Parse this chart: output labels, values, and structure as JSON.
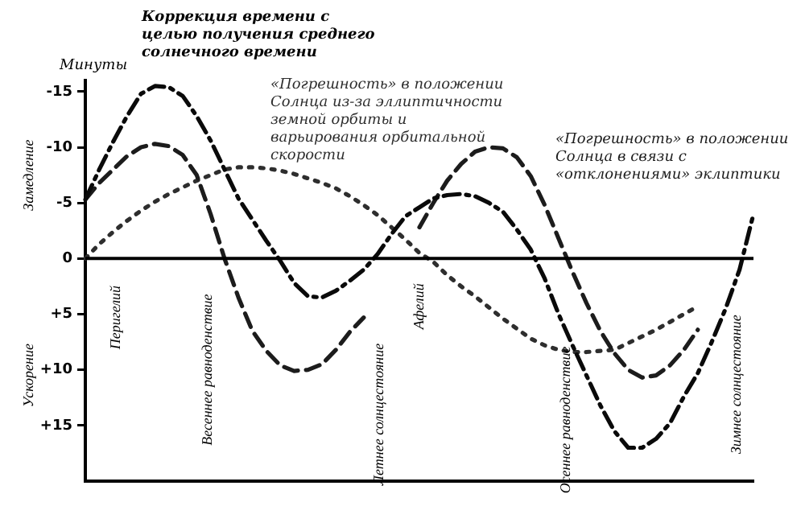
{
  "chart_data": {
    "type": "line",
    "title": "Коррекция времени с целью получения среднего солнечного времени",
    "ylabel": "Минуты",
    "ylim": [
      20,
      -16
    ],
    "yticks": [
      {
        "value": -15,
        "label": "-15"
      },
      {
        "value": -10,
        "label": "-10"
      },
      {
        "value": -5,
        "label": "-5"
      },
      {
        "value": 0,
        "label": "0"
      },
      {
        "value": 5,
        "label": "+5"
      },
      {
        "value": 10,
        "label": "+10"
      },
      {
        "value": 15,
        "label": "+15"
      }
    ],
    "categories": [
      null,
      null,
      null,
      null,
      null,
      null,
      null,
      null,
      null,
      null,
      null,
      null,
      null,
      null,
      null,
      null,
      null,
      null,
      null,
      null,
      null,
      null,
      null,
      null,
      null,
      null,
      null,
      null,
      null,
      null,
      null,
      null,
      null,
      null,
      null,
      null,
      null,
      null,
      null,
      null,
      null,
      null,
      null,
      null,
      null,
      null,
      null,
      null,
      null
    ],
    "tick_labels": "y",
    "grid": false,
    "legend": false,
    "marker": "none",
    "ref_lines": [
      {
        "axis": "y",
        "value": 0,
        "color": "#000000"
      }
    ],
    "series": [
      {
        "color": "#0a0a0a",
        "line_style": "dashdot",
        "values": [
          -5.3,
          -8,
          -10.5,
          -12.8,
          -14.8,
          -15.5,
          -15.4,
          -14.6,
          -12.8,
          -10.6,
          -8,
          -5.4,
          -3.5,
          -1.6,
          0.2,
          2.2,
          3.4,
          3.5,
          2.9,
          2,
          1,
          -0.4,
          -2.2,
          -3.8,
          -4.6,
          -5.4,
          -5.7,
          -5.8,
          -5.6,
          -5,
          -4.2,
          -2.6,
          -0.8,
          1.8,
          5,
          7.8,
          10.5,
          13.2,
          15.5,
          17,
          17,
          16.2,
          14.8,
          12.4,
          10.3,
          7.5,
          4.5,
          1,
          -4
        ]
      },
      {
        "name": "«Погрешность» в положении Солнца в связи с «отклонениями» эклиптики",
        "color": "#1c1c1c",
        "line_style": "dashed",
        "values": [
          -5.3,
          -6.8,
          -8,
          -9.2,
          -10,
          -10.3,
          -10.1,
          -9.3,
          -7.5,
          -4,
          0,
          3.5,
          6.5,
          8.3,
          9.6,
          10.1,
          10,
          9.5,
          8.2,
          6.6,
          5.3,
          null,
          null,
          null,
          -2.8,
          -5,
          -7,
          -8.5,
          -9.6,
          -10,
          -9.9,
          -9.1,
          -7.4,
          -4.8,
          -1.8,
          1.2,
          4,
          6.5,
          8.5,
          10,
          10.7,
          10.5,
          9.6,
          8.2,
          6.4,
          null,
          null,
          null,
          null
        ]
      },
      {
        "name": "«Погрешность» в положении Солнца из-за эллиптичности земной орбиты и варьирования орбитальной скорости",
        "color": "#2e2e2e",
        "line_style": "dotted",
        "values": [
          0,
          -1.3,
          -2.4,
          -3.4,
          -4.3,
          -5.1,
          -5.8,
          -6.4,
          -7,
          -7.5,
          -8,
          -8.2,
          -8.2,
          -8.1,
          -7.9,
          -7.6,
          -7.2,
          -6.8,
          -6.3,
          -5.6,
          -4.8,
          -3.9,
          -2.8,
          -1.7,
          -0.5,
          0.3,
          1.5,
          2.5,
          3.4,
          4.4,
          5.4,
          6.3,
          7.2,
          7.8,
          8.2,
          8.4,
          8.4,
          8.3,
          8.2,
          7.6,
          7,
          6.4,
          5.7,
          5,
          4.3,
          null,
          null,
          null,
          null
        ]
      }
    ],
    "annotations": [
      "Замедление",
      "Ускорение",
      "Перигелий",
      "Весеннее равноденствие",
      "Летнее солнцестояние",
      "Афелий",
      "Осеннее равноденствие",
      "Зимнее солнцестояние"
    ]
  }
}
